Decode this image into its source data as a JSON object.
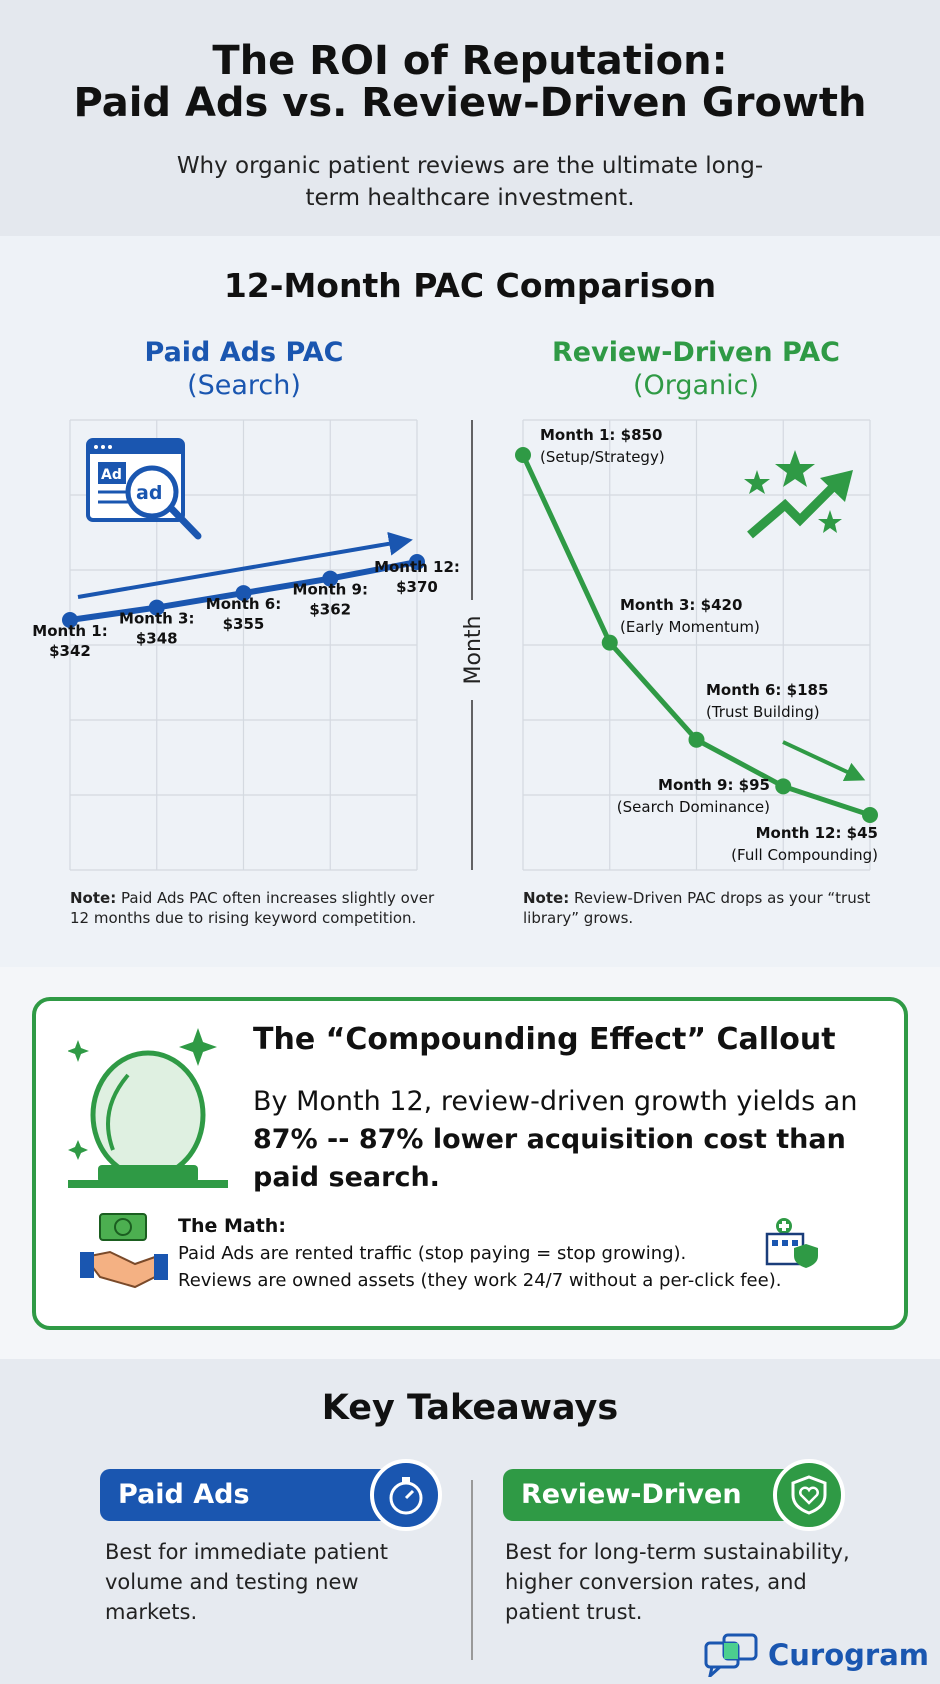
{
  "header": {
    "title_line1": "The ROI of Reputation:",
    "title_line2": "Paid Ads vs. Review-Driven Growth",
    "subtitle": "Why organic patient reviews are the ultimate long-term healthcare investment."
  },
  "comparison": {
    "title": "12-Month PAC Comparison",
    "axis_label": "Month",
    "paid": {
      "title": "Paid Ads PAC",
      "subtitle": "(Search)",
      "icon": "ad-search-icon",
      "note_bold": "Note:",
      "note": " Paid Ads PAC often increases slightly over 12 months due to rising keyword competition."
    },
    "review": {
      "title": "Review-Driven PAC",
      "subtitle": "(Organic)",
      "icon": "stars-growth-icon",
      "note_bold": "Note:",
      "note": " Review-Driven PAC drops as your “trust library” grows."
    }
  },
  "chart_data": [
    {
      "type": "line",
      "title": "Paid Ads PAC (Search)",
      "xlabel": "Month",
      "ylabel": "",
      "color": "#1a56b0",
      "x": [
        1,
        3,
        6,
        9,
        12
      ],
      "values": [
        342,
        348,
        355,
        362,
        370
      ],
      "labels": [
        "Month 1:|$342",
        "Month 3:|$348",
        "Month 6:|$355",
        "Month 9:|$362",
        "Month 12:|$370"
      ],
      "trend": "up",
      "grid": true
    },
    {
      "type": "line",
      "title": "Review-Driven PAC (Organic)",
      "xlabel": "Month",
      "ylabel": "",
      "color": "#2f9a45",
      "x": [
        1,
        3,
        6,
        9,
        12
      ],
      "values": [
        850,
        420,
        185,
        95,
        45
      ],
      "labels": [
        "Month 1: $850",
        "Month 3: $420",
        "Month 6: $185",
        "Month 9: $95",
        "Month 12: $45"
      ],
      "annotations": [
        "(Setup/Strategy)",
        "(Early Momentum)",
        "(Trust Building)",
        "(Search Dominance)",
        "(Full Compounding)"
      ],
      "trend": "down",
      "grid": true
    }
  ],
  "callout": {
    "title": "The “Compounding Effect” Callout",
    "body_pre": "By Month 12, review-driven growth yields an ",
    "body_bold": "87% -- 87% lower acquisition cost than paid search.",
    "math_title": "The Math:",
    "math_line1": "Paid Ads are rented traffic (stop paying = stop growing).",
    "math_line2": "Reviews are owned assets (they work 24/7 without a per-click fee).",
    "icons": [
      "crystal-ball-icon",
      "money-handshake-icon",
      "hospital-shield-icon"
    ]
  },
  "takeaways": {
    "title": "Key Takeaways",
    "paid": {
      "label": "Paid Ads",
      "icon": "stopwatch-icon",
      "text": "Best for immediate patient volume and testing new markets."
    },
    "review": {
      "label": "Review-Driven",
      "icon": "heart-shield-icon",
      "text": "Best for long-term sustainability, higher conversion rates, and patient trust."
    }
  },
  "brand": {
    "name": "Curogram"
  },
  "colors": {
    "blue": "#1a56b0",
    "green": "#2f9a45",
    "text": "#111111"
  }
}
